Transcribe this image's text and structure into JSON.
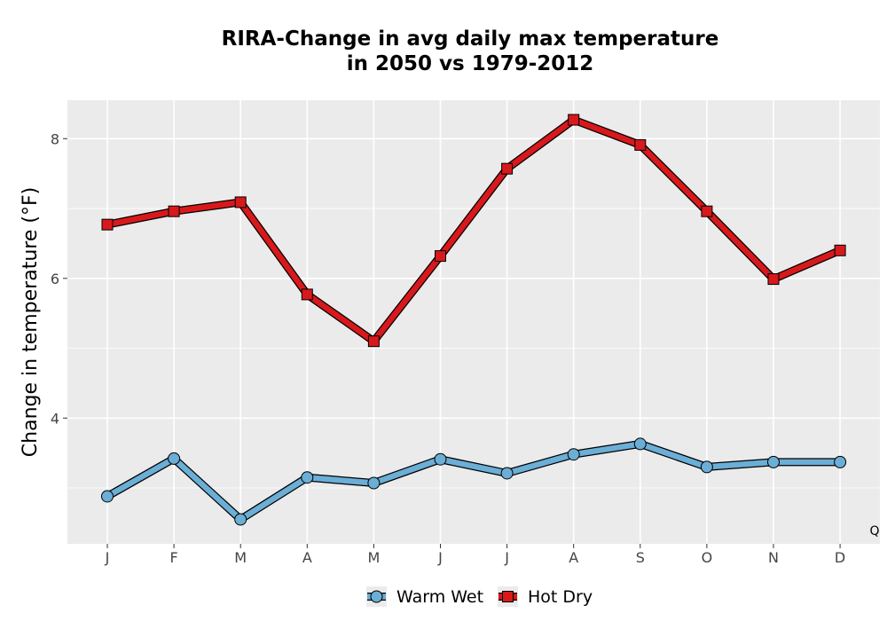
{
  "chart_data": {
    "type": "line",
    "title_lines": [
      "RIRA-Change in avg daily max temperature",
      "in 2050 vs 1979-2012"
    ],
    "xlabel": "",
    "ylabel": "Change in temperature (°F)",
    "categories": [
      "J",
      "F",
      "M",
      "A",
      "M",
      "J",
      "J",
      "A",
      "S",
      "O",
      "N",
      "D"
    ],
    "yticks": [
      4,
      6,
      8
    ],
    "ylim": [
      2.2,
      8.55
    ],
    "grid": true,
    "legend_position": "bottom",
    "corner_note": "Q",
    "series": [
      {
        "name": "Warm Wet",
        "marker": "circle",
        "color": "#6baed6",
        "values": [
          2.88,
          3.42,
          2.55,
          3.15,
          3.07,
          3.41,
          3.21,
          3.48,
          3.63,
          3.3,
          3.37,
          3.37
        ]
      },
      {
        "name": "Hot Dry",
        "marker": "square",
        "color": "#d7191c",
        "values": [
          6.77,
          6.96,
          7.09,
          5.77,
          5.1,
          6.32,
          7.57,
          8.27,
          7.91,
          6.96,
          5.99,
          6.4
        ]
      }
    ]
  }
}
